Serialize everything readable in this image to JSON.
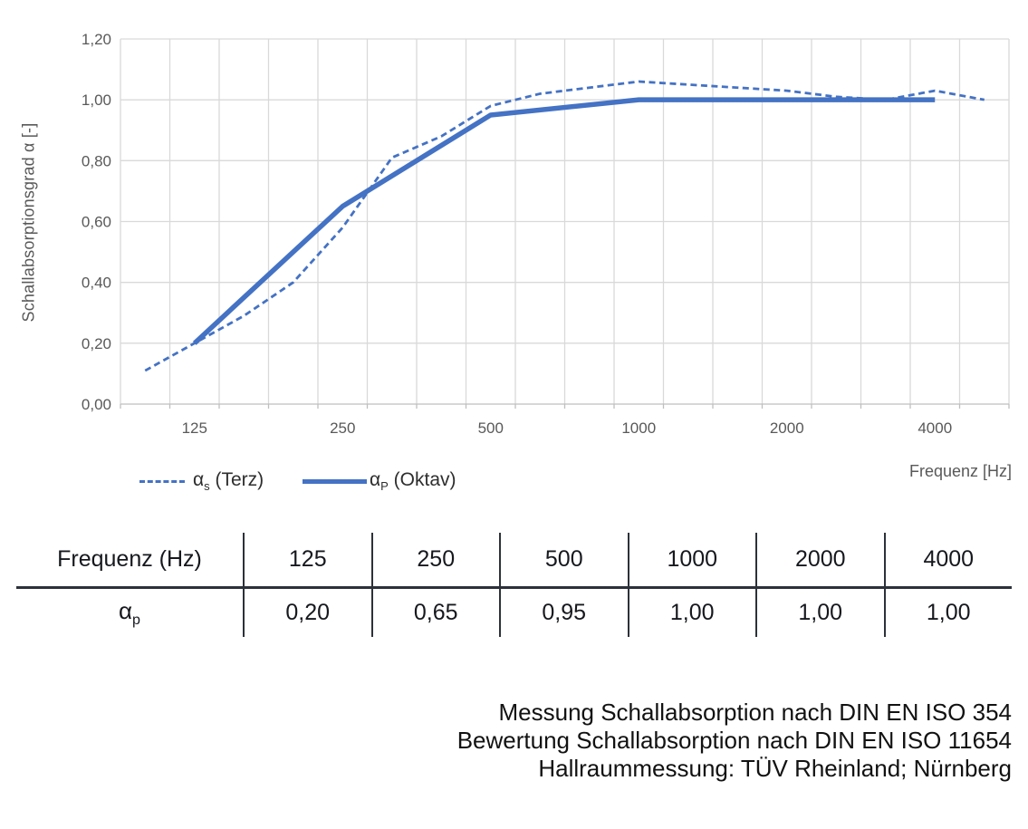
{
  "chart": {
    "y_axis": {
      "title": "Schallabsorptionsgrad α [-]",
      "tick_labels": [
        "0,00",
        "0,20",
        "0,40",
        "0,60",
        "0,80",
        "1,00",
        "1,20"
      ]
    },
    "x_axis": {
      "title": "Frequenz [Hz]",
      "tick_labels": [
        "125",
        "250",
        "500",
        "1000",
        "2000",
        "4000"
      ],
      "tick_indices": [
        1,
        4,
        7,
        10,
        13,
        16
      ]
    },
    "colors": {
      "line_blue": "#4472C4",
      "gridline": "#D9D9D9",
      "axis_line": "#BFBFBF",
      "label_gray": "#595959"
    }
  },
  "chart_data": {
    "type": "line",
    "title": "",
    "xlabel": "Frequenz [Hz]",
    "ylabel": "Schallabsorptionsgrad α [-]",
    "x_scale": "log-categories (third-octave bands)",
    "x": [
      100,
      125,
      160,
      200,
      250,
      315,
      400,
      500,
      630,
      800,
      1000,
      1250,
      1600,
      2000,
      2500,
      3150,
      4000,
      5000
    ],
    "x_tick_labels_shown": [
      "125",
      "250",
      "500",
      "1000",
      "2000",
      "4000"
    ],
    "ylim": [
      0,
      1.2
    ],
    "grid": true,
    "legend_position": "bottom-left",
    "series": [
      {
        "name": "αs (Terz)",
        "style": "dashed",
        "x": [
          100,
          125,
          160,
          200,
          250,
          315,
          400,
          500,
          630,
          800,
          1000,
          1250,
          1600,
          2000,
          2500,
          3150,
          4000,
          5000
        ],
        "values": [
          0.11,
          0.2,
          0.29,
          0.4,
          0.58,
          0.81,
          0.88,
          0.98,
          1.02,
          1.04,
          1.06,
          1.05,
          1.04,
          1.03,
          1.01,
          1.0,
          1.03,
          1.0
        ]
      },
      {
        "name": "αP (Oktav)",
        "style": "solid",
        "x": [
          125,
          250,
          500,
          1000,
          2000,
          4000
        ],
        "values": [
          0.2,
          0.65,
          0.95,
          1.0,
          1.0,
          1.0
        ]
      }
    ]
  },
  "legend": {
    "items": [
      {
        "symbol": "α",
        "subscript": "s",
        "label": " (Terz)",
        "style": "dashed"
      },
      {
        "symbol": "α",
        "subscript": "P",
        "label": " (Oktav)",
        "style": "solid"
      }
    ]
  },
  "table": {
    "header_label": "Frequenz (Hz)",
    "row_symbol": "α",
    "row_subscript": "p",
    "frequencies": [
      "125",
      "250",
      "500",
      "1000",
      "2000",
      "4000"
    ],
    "alpha_p_values": [
      "0,20",
      "0,65",
      "0,95",
      "1,00",
      "1,00",
      "1,00"
    ]
  },
  "footer": {
    "lines": [
      "Messung Schallabsorption nach DIN EN ISO 354",
      "Bewertung Schallabsorption nach DIN EN ISO 11654",
      "Hallraummessung: TÜV Rheinland; Nürnberg"
    ]
  }
}
